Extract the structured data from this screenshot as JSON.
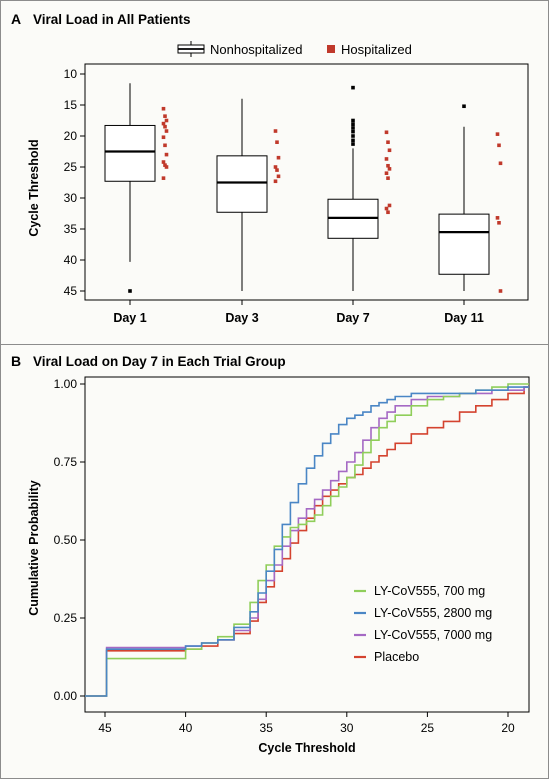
{
  "panels": {
    "a": {
      "letter": "A",
      "title": "Viral Load in All Patients"
    },
    "b": {
      "letter": "B",
      "title": "Viral Load on Day 7 in Each Trial Group"
    }
  },
  "colors": {
    "hospitalized": "#c0392b",
    "ly700": "#8fce5a",
    "ly2800": "#4a86c5",
    "ly7000": "#a569c4",
    "placebo": "#d4432f",
    "box": "#000000"
  },
  "chart_data": [
    {
      "type": "box",
      "title": "Viral Load in All Patients",
      "xlabel": "",
      "ylabel": "Cycle Threshold",
      "ylim": [
        10,
        45
      ],
      "y_inverted": true,
      "yticks": [
        10,
        15,
        20,
        25,
        30,
        35,
        40,
        45
      ],
      "categories": [
        "Day 1",
        "Day 3",
        "Day 7",
        "Day 11"
      ],
      "legend": {
        "position": "top-center",
        "entries": [
          "Nonhospitalized",
          "Hospitalized"
        ]
      },
      "series": [
        {
          "name": "Nonhospitalized",
          "boxes": [
            {
              "whisker_low": 11.5,
              "q1": 18.3,
              "median": 22.5,
              "q3": 27.3,
              "whisker_high": 40.3,
              "outliers": [
                45
              ]
            },
            {
              "whisker_low": 14.0,
              "q1": 23.2,
              "median": 27.5,
              "q3": 32.3,
              "whisker_high": 45.0,
              "outliers": []
            },
            {
              "whisker_low": 22.0,
              "q1": 30.2,
              "median": 33.2,
              "q3": 36.5,
              "whisker_high": 45.0,
              "outliers": [
                12.2,
                17.5,
                18.1,
                18.7,
                19.3,
                20.0,
                20.7,
                21.3
              ]
            },
            {
              "whisker_low": 18.5,
              "q1": 32.6,
              "median": 35.5,
              "q3": 42.3,
              "whisker_high": 45.0,
              "outliers": [
                15.2
              ]
            }
          ]
        },
        {
          "name": "Hospitalized",
          "points": [
            [
              15.6,
              16.8,
              17.5,
              18.0,
              18.5,
              19.2,
              20.2,
              21.5,
              23.0,
              24.2,
              24.7,
              25.0,
              26.8
            ],
            [
              19.2,
              21.0,
              23.5,
              25.0,
              25.5,
              26.5,
              27.3
            ],
            [
              19.4,
              21.0,
              22.3,
              23.7,
              24.8,
              25.3,
              26.0,
              26.8,
              31.2,
              31.7,
              32.3
            ],
            [
              19.7,
              21.5,
              24.4,
              33.2,
              34.0,
              45.0
            ]
          ]
        }
      ]
    },
    {
      "type": "line",
      "step": true,
      "title": "Viral Load on Day 7 in Each Trial Group",
      "xlabel": "Cycle Threshold",
      "ylabel": "Cumulative Probability",
      "xlim": [
        46.3,
        18.2
      ],
      "x_inverted": true,
      "xticks": [
        45,
        40,
        35,
        30,
        25,
        20
      ],
      "ylim": [
        -0.05,
        1.01
      ],
      "yticks": [
        "0.00",
        "0.25",
        "0.50",
        "0.75",
        "1.00"
      ],
      "legend": {
        "position": "bottom-right"
      },
      "series": [
        {
          "name": "LY-CoV555, 700 mg",
          "x": [
            46.3,
            45,
            44.9,
            40.3,
            40,
            39,
            38,
            37,
            36,
            35.5,
            35,
            34.5,
            34,
            33.5,
            33,
            32.5,
            32,
            31.5,
            31,
            30.5,
            30,
            29.5,
            29,
            28.5,
            28,
            27.5,
            27,
            26,
            25,
            24,
            23,
            22,
            21,
            20,
            19,
            18.3
          ],
          "y": [
            0,
            0,
            0.12,
            0.12,
            0.15,
            0.17,
            0.19,
            0.23,
            0.3,
            0.37,
            0.42,
            0.48,
            0.51,
            0.54,
            0.55,
            0.56,
            0.58,
            0.61,
            0.64,
            0.67,
            0.7,
            0.74,
            0.78,
            0.82,
            0.86,
            0.88,
            0.9,
            0.93,
            0.95,
            0.96,
            0.97,
            0.98,
            0.99,
            1.0,
            1.0,
            1.0
          ]
        },
        {
          "name": "LY-CoV555, 2800 mg",
          "x": [
            46.3,
            45,
            44.9,
            40.3,
            40,
            39,
            38,
            37,
            36,
            35.5,
            35,
            34.5,
            34,
            33.5,
            33,
            32.5,
            32,
            31.5,
            31,
            30.5,
            30,
            29.5,
            29,
            28.5,
            28,
            27.5,
            27,
            26,
            25,
            24,
            23,
            22,
            21,
            20,
            19,
            18.3
          ],
          "y": [
            0,
            0,
            0.15,
            0.15,
            0.16,
            0.17,
            0.18,
            0.22,
            0.27,
            0.33,
            0.4,
            0.47,
            0.55,
            0.62,
            0.68,
            0.73,
            0.77,
            0.81,
            0.84,
            0.87,
            0.89,
            0.9,
            0.91,
            0.93,
            0.94,
            0.95,
            0.96,
            0.97,
            0.97,
            0.97,
            0.97,
            0.98,
            0.98,
            0.99,
            0.99,
            0.99
          ]
        },
        {
          "name": "LY-CoV555, 7000 mg",
          "x": [
            46.3,
            45,
            44.9,
            40.3,
            40,
            39,
            38,
            37,
            36,
            35.5,
            35,
            34.5,
            34,
            33.5,
            33,
            32.5,
            32,
            31.5,
            31,
            30.5,
            30,
            29.5,
            29,
            28.5,
            28,
            27.5,
            27,
            26,
            25,
            24,
            23,
            22,
            21,
            20,
            19,
            18.3
          ],
          "y": [
            0,
            0,
            0.155,
            0.155,
            0.16,
            0.17,
            0.18,
            0.21,
            0.25,
            0.31,
            0.37,
            0.42,
            0.48,
            0.53,
            0.57,
            0.6,
            0.63,
            0.66,
            0.69,
            0.72,
            0.75,
            0.78,
            0.82,
            0.86,
            0.89,
            0.91,
            0.93,
            0.95,
            0.96,
            0.96,
            0.97,
            0.97,
            0.98,
            0.98,
            0.99,
            0.99
          ]
        },
        {
          "name": "Placebo",
          "x": [
            46.3,
            45,
            44.9,
            40.3,
            40,
            39,
            38,
            37,
            36,
            35.5,
            35,
            34.5,
            34,
            33.5,
            33,
            32.5,
            32,
            31.5,
            31,
            30.5,
            30,
            29.5,
            29,
            28.5,
            28,
            27.5,
            27,
            26,
            25,
            24,
            23,
            22,
            21,
            20,
            19,
            18.3
          ],
          "y": [
            0,
            0,
            0.145,
            0.145,
            0.15,
            0.16,
            0.18,
            0.2,
            0.24,
            0.3,
            0.35,
            0.4,
            0.44,
            0.49,
            0.53,
            0.57,
            0.61,
            0.64,
            0.66,
            0.68,
            0.7,
            0.71,
            0.73,
            0.75,
            0.77,
            0.79,
            0.81,
            0.84,
            0.86,
            0.88,
            0.91,
            0.93,
            0.95,
            0.97,
            0.99,
            0.99
          ]
        }
      ]
    }
  ]
}
